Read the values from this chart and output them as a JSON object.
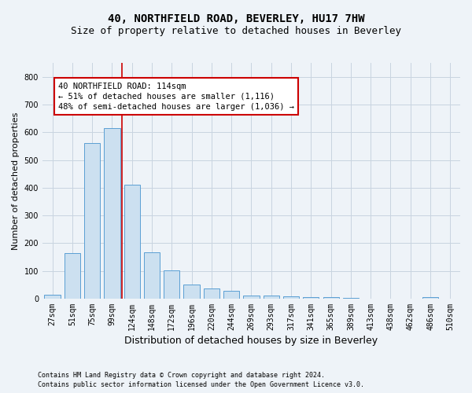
{
  "title": "40, NORTHFIELD ROAD, BEVERLEY, HU17 7HW",
  "subtitle": "Size of property relative to detached houses in Beverley",
  "xlabel": "Distribution of detached houses by size in Beverley",
  "ylabel": "Number of detached properties",
  "footnote1": "Contains HM Land Registry data © Crown copyright and database right 2024.",
  "footnote2": "Contains public sector information licensed under the Open Government Licence v3.0.",
  "bar_labels": [
    "27sqm",
    "51sqm",
    "75sqm",
    "99sqm",
    "124sqm",
    "148sqm",
    "172sqm",
    "196sqm",
    "220sqm",
    "244sqm",
    "269sqm",
    "293sqm",
    "317sqm",
    "341sqm",
    "365sqm",
    "389sqm",
    "413sqm",
    "438sqm",
    "462sqm",
    "486sqm",
    "510sqm"
  ],
  "bar_values": [
    15,
    165,
    560,
    615,
    410,
    168,
    102,
    50,
    37,
    28,
    12,
    11,
    7,
    5,
    5,
    4,
    0,
    0,
    0,
    5,
    0
  ],
  "bar_color": "#cce0f0",
  "bar_edge_color": "#5a9fd4",
  "annotation_line1": "40 NORTHFIELD ROAD: 114sqm",
  "annotation_line2": "← 51% of detached houses are smaller (1,116)",
  "annotation_line3": "48% of semi-detached houses are larger (1,036) →",
  "annotation_box_color": "#ffffff",
  "annotation_box_edge": "#cc0000",
  "vline_color": "#cc0000",
  "ylim": [
    0,
    850
  ],
  "yticks": [
    0,
    100,
    200,
    300,
    400,
    500,
    600,
    700,
    800
  ],
  "grid_color": "#c8d4e0",
  "bg_color": "#eef3f8",
  "title_fontsize": 10,
  "subtitle_fontsize": 9,
  "axis_label_fontsize": 8,
  "tick_fontsize": 7,
  "annotation_fontsize": 7.5,
  "footnote_fontsize": 6
}
